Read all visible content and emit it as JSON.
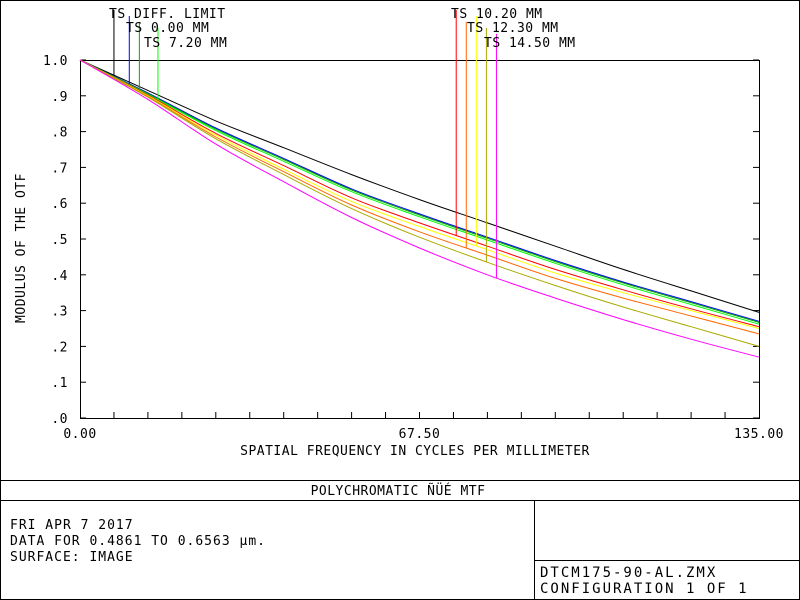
{
  "chart_data": {
    "type": "line",
    "title": "POLYCHROMATIC ÑÜÉ  MTF",
    "xlabel": "SPATIAL FREQUENCY IN CYCLES PER MILLIMETER",
    "ylabel": "MODULUS OF THE OTF",
    "xlim": [
      0,
      135
    ],
    "ylim": [
      0,
      1.0
    ],
    "x_tick_labels": [
      "0.00",
      "67.50",
      "135.00"
    ],
    "x_minor_tick_values": [
      6.75,
      13.5,
      20.25,
      27,
      33.75,
      40.5,
      47.25,
      54,
      60.75,
      67.5,
      74.25,
      81,
      87.75,
      94.5,
      101.25,
      108,
      114.75,
      121.5,
      128.25
    ],
    "y_ticks": [
      {
        "value": 0.0,
        "label": ".0"
      },
      {
        "value": 0.1,
        "label": ".1"
      },
      {
        "value": 0.2,
        "label": ".2"
      },
      {
        "value": 0.3,
        "label": ".3"
      },
      {
        "value": 0.4,
        "label": ".4"
      },
      {
        "value": 0.5,
        "label": ".5"
      },
      {
        "value": 0.6,
        "label": ".6"
      },
      {
        "value": 0.7,
        "label": ".7"
      },
      {
        "value": 0.8,
        "label": ".8"
      },
      {
        "value": 0.9,
        "label": ".9"
      },
      {
        "value": 1.0,
        "label": "1.0"
      }
    ],
    "grid": false,
    "x": [
      0,
      13.5,
      27,
      40.5,
      54,
      67.5,
      81,
      94.5,
      108,
      121.5,
      135
    ],
    "series": [
      {
        "name": "TS DIFF. LIMIT",
        "color": "#000000",
        "legend_x": 6.75,
        "values": [
          1.0,
          0.915,
          0.83,
          0.755,
          0.68,
          0.61,
          0.545,
          0.48,
          0.415,
          0.355,
          0.295
        ]
      },
      {
        "name": "TS 0.00 MM",
        "color": "#0000ff",
        "legend_x": 9.8,
        "values": [
          1.0,
          0.908,
          0.81,
          0.725,
          0.64,
          0.57,
          0.505,
          0.44,
          0.38,
          0.325,
          0.27
        ]
      },
      {
        "name": "",
        "color": "#00aa00",
        "legend_x": 11.8,
        "values": [
          1.0,
          0.906,
          0.807,
          0.722,
          0.637,
          0.567,
          0.502,
          0.437,
          0.377,
          0.322,
          0.267
        ]
      },
      {
        "name": "TS 7.20 MM",
        "color": "#00ff00",
        "legend_x": 15.5,
        "values": [
          1.0,
          0.904,
          0.803,
          0.717,
          0.632,
          0.562,
          0.497,
          0.432,
          0.372,
          0.317,
          0.262
        ]
      },
      {
        "name": "TS 10.20 MM",
        "color": "#ff0000",
        "legend_x": 74.8,
        "values": [
          1.0,
          0.902,
          0.795,
          0.705,
          0.615,
          0.545,
          0.48,
          0.415,
          0.358,
          0.305,
          0.255
        ]
      },
      {
        "name": "TS 12.30 MM",
        "color": "#ffff00",
        "legend_x": 78.8,
        "values": [
          1.0,
          0.9,
          0.79,
          0.695,
          0.605,
          0.535,
          0.47,
          0.405,
          0.35,
          0.3,
          0.25
        ]
      },
      {
        "name": "",
        "color": "#ff6600",
        "legend_x": 76.8,
        "values": [
          1.0,
          0.898,
          0.785,
          0.688,
          0.595,
          0.52,
          0.455,
          0.39,
          0.335,
          0.285,
          0.235
        ]
      },
      {
        "name": "",
        "color": "#aaaa00",
        "legend_x": 80.8,
        "values": [
          1.0,
          0.896,
          0.78,
          0.68,
          0.585,
          0.505,
          0.435,
          0.37,
          0.31,
          0.255,
          0.2
        ]
      },
      {
        "name": "TS 14.50 MM",
        "color": "#ff00ff",
        "legend_x": 82.8,
        "values": [
          1.0,
          0.89,
          0.765,
          0.66,
          0.56,
          0.475,
          0.4,
          0.335,
          0.275,
          0.22,
          0.17
        ]
      }
    ],
    "legend_placement": "top, above plot with leader lines"
  },
  "footer": {
    "date": "FRI APR 7 2017",
    "data_range": "DATA FOR 0.4861 TO 0.6563 μm.",
    "surface": "SURFACE: IMAGE",
    "filename": "DTCM175-90-AL.ZMX",
    "configuration": "CONFIGURATION 1 OF 1"
  }
}
